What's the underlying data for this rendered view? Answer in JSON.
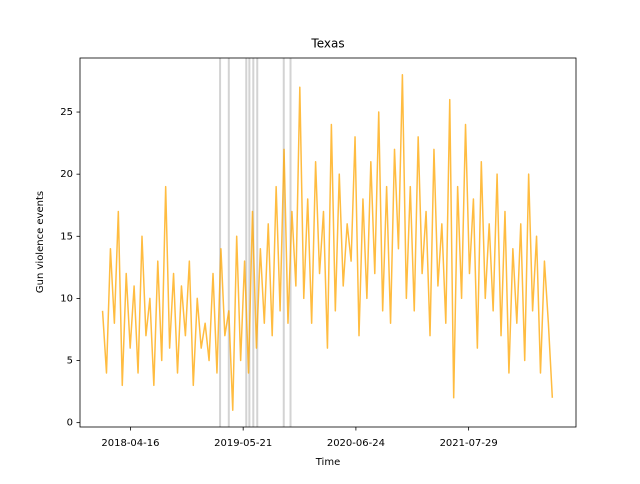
{
  "chart_data": {
    "type": "line",
    "title": "Texas",
    "xlabel": "Time",
    "ylabel": "Gun violence events",
    "x": [
      "2018-01-07",
      "2018-01-21",
      "2018-02-04",
      "2018-02-18",
      "2018-03-04",
      "2018-03-18",
      "2018-04-01",
      "2018-04-15",
      "2018-04-29",
      "2018-05-13",
      "2018-05-27",
      "2018-06-10",
      "2018-06-24",
      "2018-07-08",
      "2018-07-22",
      "2018-08-05",
      "2018-08-19",
      "2018-09-02",
      "2018-09-16",
      "2018-09-30",
      "2018-10-14",
      "2018-10-28",
      "2018-11-11",
      "2018-11-25",
      "2018-12-09",
      "2018-12-23",
      "2019-01-06",
      "2019-01-20",
      "2019-02-03",
      "2019-02-17",
      "2019-03-03",
      "2019-03-17",
      "2019-03-31",
      "2019-04-14",
      "2019-04-28",
      "2019-05-12",
      "2019-05-26",
      "2019-06-09",
      "2019-06-23",
      "2019-07-07",
      "2019-07-21",
      "2019-08-04",
      "2019-08-18",
      "2019-09-01",
      "2019-09-15",
      "2019-09-29",
      "2019-10-13",
      "2019-10-27",
      "2019-11-10",
      "2019-11-24",
      "2019-12-08",
      "2019-12-22",
      "2020-01-05",
      "2020-01-19",
      "2020-02-02",
      "2020-02-16",
      "2020-03-01",
      "2020-03-15",
      "2020-03-29",
      "2020-04-12",
      "2020-04-26",
      "2020-05-10",
      "2020-05-24",
      "2020-06-07",
      "2020-06-21",
      "2020-07-05",
      "2020-07-19",
      "2020-08-02",
      "2020-08-16",
      "2020-08-30",
      "2020-09-13",
      "2020-09-27",
      "2020-10-11",
      "2020-10-25",
      "2020-11-08",
      "2020-11-22",
      "2020-12-06",
      "2020-12-20",
      "2021-01-03",
      "2021-01-17",
      "2021-01-31",
      "2021-02-14",
      "2021-02-28",
      "2021-03-14",
      "2021-03-28",
      "2021-04-11",
      "2021-04-25",
      "2021-05-09",
      "2021-05-23",
      "2021-06-06",
      "2021-06-20",
      "2021-07-04",
      "2021-07-18",
      "2021-08-01",
      "2021-08-15",
      "2021-08-29",
      "2021-09-12",
      "2021-09-26",
      "2021-10-10",
      "2021-10-24",
      "2021-11-07",
      "2021-11-21",
      "2021-12-05",
      "2021-12-19",
      "2022-01-02",
      "2022-01-16",
      "2022-01-30",
      "2022-02-13",
      "2022-02-27",
      "2022-03-13",
      "2022-03-27",
      "2022-04-10",
      "2022-04-24",
      "2022-05-08",
      "2022-05-22"
    ],
    "series": [
      {
        "name": "Texas",
        "color": "#ffa500",
        "values": [
          9,
          4,
          14,
          8,
          17,
          3,
          12,
          6,
          11,
          4,
          15,
          7,
          10,
          3,
          13,
          5,
          19,
          6,
          12,
          4,
          11,
          7,
          13,
          3,
          10,
          6,
          8,
          5,
          12,
          4,
          14,
          7,
          9,
          1,
          15,
          5,
          13,
          4,
          17,
          6,
          14,
          8,
          16,
          7,
          19,
          9,
          22,
          8,
          17,
          11,
          27,
          10,
          18,
          8,
          21,
          12,
          17,
          6,
          24,
          9,
          20,
          11,
          16,
          13,
          23,
          7,
          18,
          10,
          21,
          12,
          25,
          9,
          19,
          8,
          22,
          14,
          28,
          10,
          19,
          9,
          23,
          12,
          17,
          7,
          22,
          11,
          16,
          8,
          26,
          2,
          19,
          10,
          24,
          12,
          18,
          6,
          21,
          10,
          16,
          9,
          20,
          7,
          17,
          4,
          14,
          8,
          16,
          5,
          20,
          9,
          15,
          4,
          13,
          8,
          2
        ]
      }
    ],
    "vlines": [
      "2019-02-28",
      "2019-03-31",
      "2019-06-01",
      "2019-06-12",
      "2019-06-26",
      "2019-07-10",
      "2019-10-12",
      "2019-11-05"
    ],
    "xlim": [
      "2017-10-19",
      "2022-08-14"
    ],
    "xticks": [
      "2018-04-16",
      "2019-05-21",
      "2020-06-24",
      "2021-07-29"
    ],
    "ylim": [
      -0.35,
      29.35
    ],
    "yticks": [
      0,
      5,
      10,
      15,
      20,
      25
    ]
  }
}
